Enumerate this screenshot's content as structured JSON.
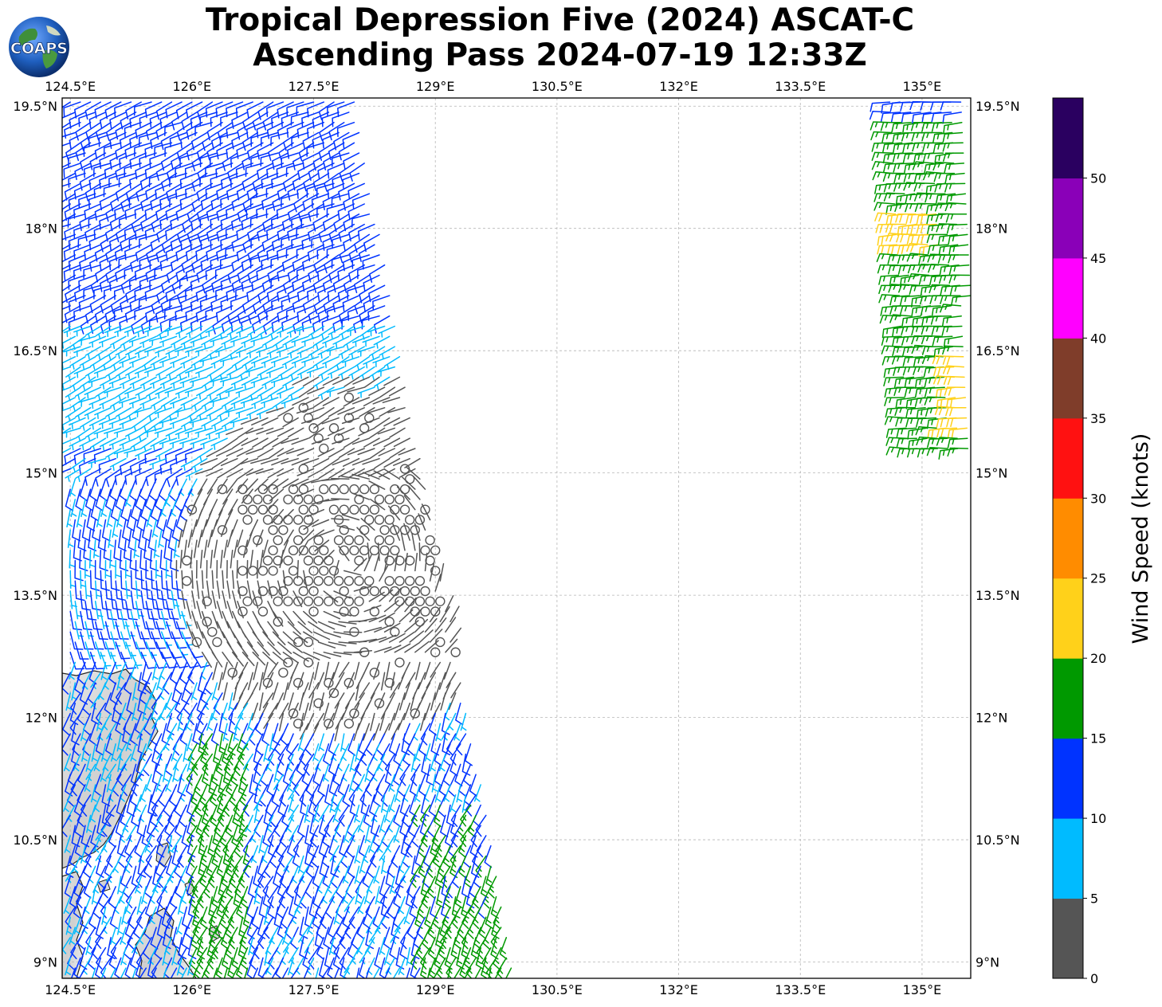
{
  "title": {
    "line1": "Tropical Depression Five (2024) ASCAT-C",
    "line2": "Ascending Pass 2024-07-19 12:33Z"
  },
  "logo": {
    "text": "COAPS",
    "icon": "globe-logo-icon"
  },
  "map": {
    "lon_range": [
      124.4,
      135.6
    ],
    "lat_range": [
      8.8,
      19.6
    ],
    "lon_labels": [
      "124.5°E",
      "126°E",
      "127.5°E",
      "129°E",
      "130.5°E",
      "132°E",
      "133.5°E",
      "135°E"
    ],
    "lat_labels": [
      "9°N",
      "10.5°N",
      "12°N",
      "13.5°N",
      "15°N",
      "16.5°N",
      "18°N",
      "19.5°N"
    ],
    "gridlines": true,
    "land": "Philippines (Samar/Leyte region), lower-left"
  },
  "colorbar": {
    "title": "Wind Speed (knots)",
    "ticks": [
      "0",
      "5",
      "10",
      "15",
      "20",
      "25",
      "30",
      "35",
      "40",
      "45",
      "50"
    ],
    "colors": [
      "#555555",
      "#00bbff",
      "#0033ff",
      "#009900",
      "#ffd11a",
      "#ff8c00",
      "#ff1111",
      "#7f3d2a",
      "#ff00ff",
      "#8a00b8",
      "#2a0060"
    ]
  },
  "swaths": [
    {
      "name": "western-swath",
      "lon_west_top": 124.5,
      "lon_east_top": 128.0,
      "lon_west_bottom": 124.5,
      "lon_east_bottom": 130.0,
      "lat_top": 19.6,
      "lat_bottom": 8.8
    },
    {
      "name": "eastern-swath",
      "lon_west": 134.6,
      "lon_east": 135.6,
      "lat_top": 19.6,
      "lat_bottom": 15.2
    }
  ]
}
